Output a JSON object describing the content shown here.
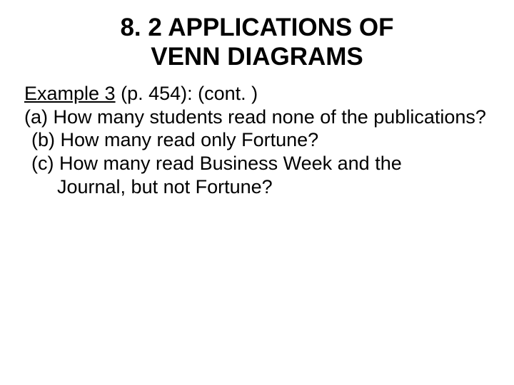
{
  "title": {
    "line1": "8. 2 APPLICATIONS OF",
    "line2": "VENN DIAGRAMS"
  },
  "example": {
    "label": "Example 3",
    "ref": " (p. 454): (cont. )"
  },
  "questions": {
    "a": "(a) How many students read none of the publications?",
    "b": "(b) How many read only Fortune?",
    "c_line1": "(c) How many read Business Week and the",
    "c_line2": "Journal, but not Fortune?"
  },
  "colors": {
    "background": "#ffffff",
    "text": "#000000"
  },
  "typography": {
    "title_fontsize": 35,
    "body_fontsize": 27,
    "font_family": "Arial"
  }
}
